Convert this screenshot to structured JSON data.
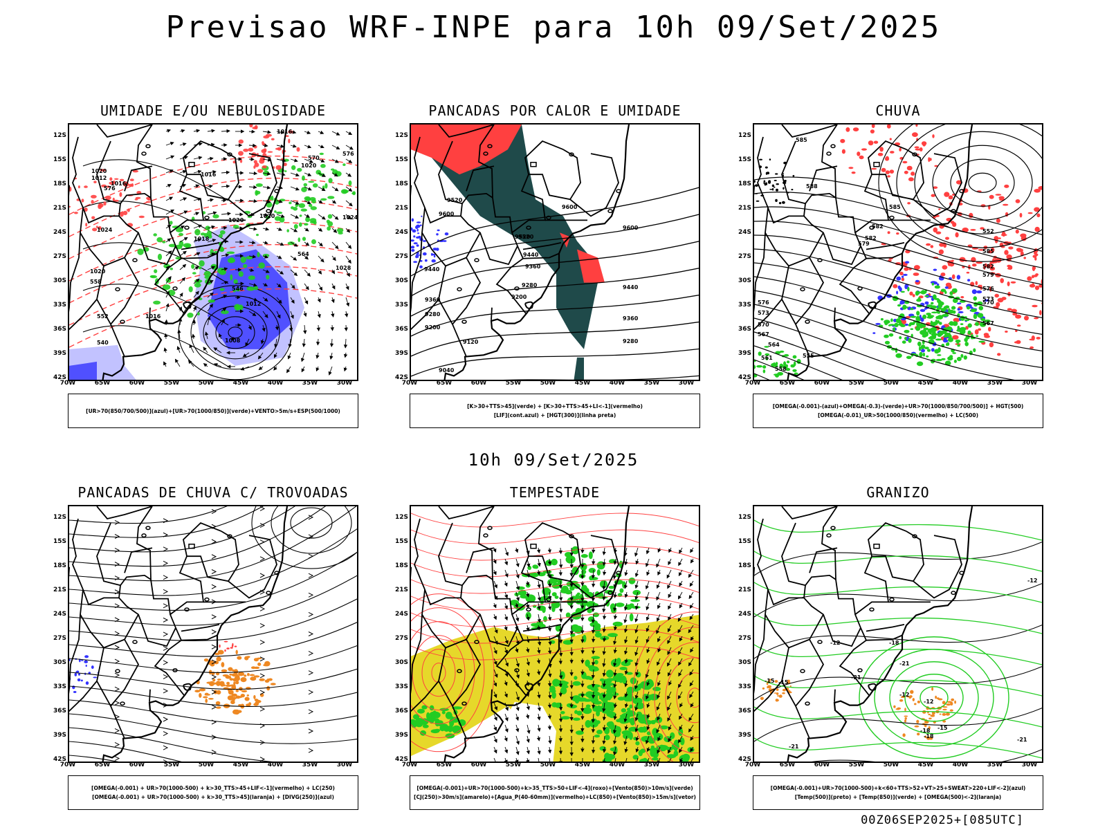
{
  "main_title": "Previsao WRF-INPE  para 10h 09/Set/2025",
  "mid_title": "10h 09/Set/2025",
  "footer": "00Z06SEP2025+[085UTC]",
  "y_ticks": [
    "12S",
    "15S",
    "18S",
    "21S",
    "24S",
    "27S",
    "30S",
    "33S",
    "36S",
    "39S",
    "42S"
  ],
  "x_ticks": [
    "70W",
    "65W",
    "60W",
    "55W",
    "50W",
    "45W",
    "40W",
    "35W",
    "30W"
  ],
  "colors": {
    "red": "#ff4040",
    "green": "#22cc22",
    "blue": "#3333ff",
    "lightblue": "#a8a8ff",
    "darkteal": "#1f4a4a",
    "orange": "#ee8822",
    "yellow": "#e6d82a"
  },
  "panels": [
    {
      "title": "UMIDADE E/OU NEBULOSIDADE",
      "legend": [
        "[UR>70(850/700/500)](azul)+[UR>70(1000/850)](verde)+VENTO>5m/s+ESP(500/1000)"
      ],
      "contour_labels": [
        "1020",
        "1012",
        "1016",
        "1016",
        "1024",
        "1020",
        "1018",
        "1020",
        "1020",
        "1016",
        "1020",
        "1024",
        "1028",
        "1012",
        "1008",
        "1016",
        "570",
        "576",
        "558",
        "552",
        "540",
        "546",
        "564",
        "576"
      ]
    },
    {
      "title": "PANCADAS POR CALOR E UMIDADE",
      "legend": [
        "[K>30+TTS>45](verde) + [K>30+TTS>45+LI<-1](vermelho)",
        "[LIF](cont.azul) + [HGT(300)](linha preta)"
      ],
      "contour_labels": [
        "9600",
        "9520",
        "9600",
        "9520",
        "9440",
        "9440",
        "9360",
        "9280",
        "9200",
        "9280",
        "9360",
        "9120",
        "9040",
        "9200",
        "9600",
        "9520",
        "9440",
        "9360",
        "9280"
      ]
    },
    {
      "title": "CHUVA",
      "legend": [
        "[OMEGA(-0.001)-(azul)+OMEGA(-0.3)-(verde)+UR>70(1000/850/700/500)] + HGT(500)",
        "[OMEGA(-0.01)_UR>50(1000/850)(vermelho) + LC(500)"
      ],
      "contour_labels": [
        "585",
        "588",
        "585",
        "582",
        "582",
        "579",
        "576",
        "573",
        "570",
        "567",
        "564",
        "561",
        "558",
        "555",
        "552",
        "585",
        "582",
        "579",
        "576",
        "573",
        "570",
        "567"
      ]
    },
    {
      "title": "PANCADAS DE CHUVA C/ TROVOADAS",
      "legend": [
        "[OMEGA(-0.001) + UR>70(1000-500) + k>30_TTS>45+LIF<-1](vermelho) + LC(250)",
        "[OMEGA(-0.001) + UR>70(1000-500) + k>30_TTS>45](laranja) + [DIVG(250)](azul)"
      ],
      "contour_labels": []
    },
    {
      "title": "TEMPESTADE",
      "legend": [
        "[OMEGA(-0.001)+UR>70(1000-500)+k>35_TTS>50+LIF<-4](roxo)+[Vento(850)>10m/s](verde)",
        "[CJ(250)>30m/s](amarelo)+[Agua_P(40-60mm)](vermelho)+LC(850)+[Vento(850)>15m/s](vetor)"
      ],
      "contour_labels": []
    },
    {
      "title": "GRANIZO",
      "legend": [
        "[OMEGA(-0.001)+UR>70(1000-500)+k<60+TTS>52+VT>25+SWEAT>220+LIF<-2](azul)",
        "[Temp(500)](preto) + [Temp(850)](verde) + [OMEGA(500)<-2](laranja)"
      ],
      "contour_labels": [
        "-21",
        "-18",
        "-15",
        "-12",
        "-21",
        "-12",
        "-15",
        "-18",
        "-21",
        "-12",
        "-15",
        "-18",
        "-21",
        "-12"
      ]
    }
  ]
}
